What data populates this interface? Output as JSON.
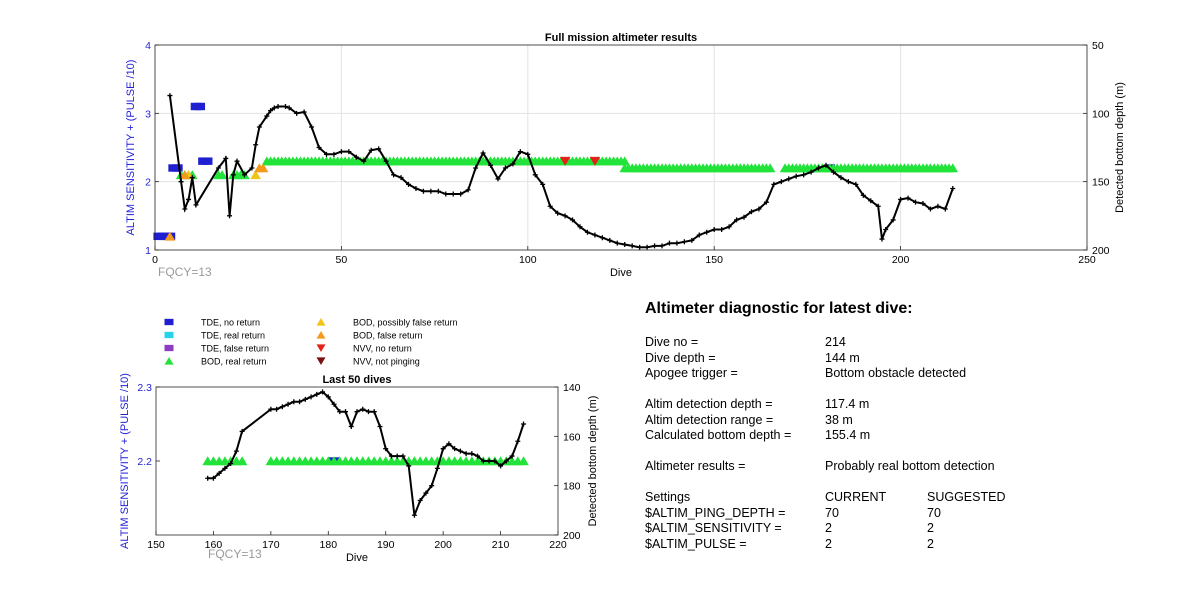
{
  "top_chart": {
    "title": "Full mission altimeter results",
    "xlabel": "Dive",
    "ylabel": "ALTIM SENSITIVITY + (PULSE /10)",
    "y2label": "Detected bottom depth (m)",
    "fqcy_label": "FQCY=13",
    "xticks": [
      "0",
      "50",
      "100",
      "150",
      "200",
      "250"
    ],
    "yticks": [
      "1",
      "2",
      "3",
      "4"
    ],
    "y2ticks": [
      "50",
      "100",
      "150",
      "200"
    ]
  },
  "bottom_chart": {
    "title": "Last 50 dives",
    "xlabel": "Dive",
    "ylabel": "ALTIM SENSITIVITY + (PULSE /10)",
    "y2label": "Detected bottom depth (m)",
    "fqcy_label": "FQCY=13",
    "xticks": [
      "150",
      "160",
      "170",
      "180",
      "190",
      "200",
      "210",
      "220"
    ],
    "yticks": [
      "2.2",
      "2.3"
    ],
    "y2ticks": [
      "140",
      "160",
      "180",
      "200"
    ]
  },
  "legend": {
    "items": [
      {
        "label": "TDE, no return",
        "color": "#1f1fd1",
        "marker": "square"
      },
      {
        "label": "TDE, real return",
        "color": "#27d3e8",
        "marker": "square"
      },
      {
        "label": "TDE, false return",
        "color": "#8e3bc4",
        "marker": "square"
      },
      {
        "label": "BOD, real return",
        "color": "#22e33a",
        "marker": "triangle-up"
      },
      {
        "label": "BOD, possibly false return",
        "color": "#f2c318",
        "marker": "triangle-up"
      },
      {
        "label": "BOD, false return",
        "color": "#f39a1c",
        "marker": "triangle-up"
      },
      {
        "label": "NVV, no return",
        "color": "#e2231a",
        "marker": "triangle-down"
      },
      {
        "label": "NVV, not pinging",
        "color": "#7a1010",
        "marker": "triangle-down"
      }
    ]
  },
  "diagnostic": {
    "title": "Altimeter diagnostic for latest dive:",
    "dive_no_label": "Dive no =",
    "dive_no": "214",
    "dive_depth_label": "Dive depth =",
    "dive_depth": "144 m",
    "apogee_label": "Apogee trigger =",
    "apogee": "Bottom obstacle detected",
    "altim_depth_label": "Altim detection depth =",
    "altim_depth": "117.4 m",
    "altim_range_label": "Altim detection range =",
    "altim_range": "38 m",
    "calc_depth_label": "Calculated bottom depth =",
    "calc_depth": "155.4 m",
    "results_label": "Altimeter results =",
    "results": "Probably real bottom detection",
    "settings_label": "Settings",
    "current_label": "CURRENT",
    "suggested_label": "SUGGESTED",
    "ping_depth_label": "$ALTIM_PING_DEPTH =",
    "ping_depth_current": "70",
    "ping_depth_suggested": "70",
    "sensitivity_label": "$ALTIM_SENSITIVITY =",
    "sensitivity_current": "2",
    "sensitivity_suggested": "2",
    "pulse_label": "$ALTIM_PULSE =",
    "pulse_current": "2",
    "pulse_suggested": "2"
  },
  "chart_data": [
    {
      "type": "scatter",
      "title": "Full mission altimeter results",
      "xlabel": "Dive",
      "ylabel": "ALTIM SENSITIVITY + (PULSE /10)",
      "y2label": "Detected bottom depth (m)",
      "xlim": [
        0,
        250
      ],
      "ylim": [
        1,
        4
      ],
      "y2lim": [
        50,
        200
      ],
      "y2_reversed": true,
      "grid": true,
      "series": [
        {
          "name": "TDE, no return",
          "marker": "square",
          "color": "#1f1fd1",
          "points": [
            [
              1,
              1.2
            ],
            [
              2,
              1.2
            ],
            [
              3,
              1.2
            ],
            [
              4,
              1.2
            ],
            [
              5,
              2.2
            ],
            [
              6,
              2.2
            ],
            [
              11,
              3.1
            ],
            [
              12,
              3.1
            ],
            [
              13,
              2.3
            ],
            [
              14,
              2.3
            ],
            [
              181,
              2.2
            ]
          ]
        },
        {
          "name": "BOD, real return",
          "marker": "triangle-up",
          "color": "#22e33a",
          "ranges": [
            {
              "x": [
                7,
                8,
                9,
                10,
                17,
                18,
                21,
                22,
                23,
                24
              ],
              "y": 2.1
            },
            {
              "x_from": 30,
              "x_to": 126,
              "y": 2.3
            },
            {
              "x_from": 126,
              "x_to": 165,
              "y": 2.2
            },
            {
              "x_from": 169,
              "x_to": 214,
              "y": 2.2
            }
          ]
        },
        {
          "name": "BOD, possibly false return",
          "marker": "triangle-up",
          "color": "#f2c318",
          "points": [
            [
              9,
              2.1
            ],
            [
              27,
              2.1
            ]
          ]
        },
        {
          "name": "BOD, false return",
          "marker": "triangle-up",
          "color": "#f39a1c",
          "points": [
            [
              4,
              1.2
            ],
            [
              8,
              2.1
            ],
            [
              28,
              2.2
            ],
            [
              29,
              2.2
            ]
          ]
        },
        {
          "name": "NVV, no return",
          "marker": "triangle-down",
          "color": "#e2231a",
          "points": [
            [
              110,
              2.3
            ],
            [
              118,
              2.3
            ]
          ]
        },
        {
          "name": "Detected bottom depth",
          "axis": "right",
          "marker": "plus",
          "color": "#000000",
          "x": [
            4,
            7,
            8,
            9,
            10,
            11,
            17,
            19,
            20,
            21,
            22,
            24,
            26,
            27,
            28,
            30,
            31,
            32,
            33,
            35,
            36,
            38,
            40,
            42,
            44,
            46,
            48,
            50,
            52,
            54,
            56,
            58,
            60,
            62,
            64,
            66,
            68,
            70,
            72,
            74,
            76,
            78,
            80,
            82,
            84,
            86,
            88,
            90,
            92,
            94,
            96,
            98,
            100,
            102,
            104,
            106,
            108,
            110,
            112,
            114,
            116,
            118,
            120,
            122,
            124,
            126,
            128,
            130,
            132,
            134,
            136,
            138,
            140,
            142,
            144,
            146,
            148,
            150,
            152,
            154,
            156,
            158,
            160,
            162,
            164,
            166,
            168,
            170,
            172,
            174,
            176,
            178,
            180,
            182,
            184,
            186,
            188,
            190,
            192,
            194,
            195,
            196,
            198,
            200,
            202,
            204,
            206,
            208,
            210,
            212,
            214
          ],
          "y": [
            87,
            150,
            170,
            163,
            147,
            167,
            140,
            133,
            175,
            145,
            135,
            145,
            140,
            123,
            110,
            102,
            98,
            96,
            95,
            95,
            96,
            100,
            99,
            110,
            125,
            130,
            130,
            128,
            128,
            132,
            135,
            127,
            126,
            135,
            145,
            147,
            152,
            155,
            157,
            157,
            157,
            159,
            159,
            159,
            156,
            140,
            129,
            138,
            148,
            140,
            137,
            128,
            130,
            145,
            152,
            168,
            173,
            175,
            178,
            183,
            187,
            189,
            191,
            193,
            195,
            196,
            197,
            198,
            198,
            197,
            197,
            195,
            195,
            194,
            193,
            189,
            187,
            185,
            185,
            183,
            178,
            176,
            172,
            170,
            165,
            152,
            150,
            148,
            146,
            145,
            143,
            140,
            138,
            143,
            147,
            150,
            152,
            160,
            164,
            168,
            192,
            185,
            178,
            163,
            162,
            165,
            166,
            170,
            168,
            170,
            155
          ]
        }
      ]
    },
    {
      "type": "scatter",
      "title": "Last 50 dives",
      "xlabel": "Dive",
      "ylabel": "ALTIM SENSITIVITY + (PULSE /10)",
      "y2label": "Detected bottom depth (m)",
      "xlim": [
        150,
        220
      ],
      "ylim": [
        2.1,
        2.3
      ],
      "y2lim": [
        140,
        200
      ],
      "y2_reversed": true,
      "grid": false,
      "series": [
        {
          "name": "TDE, no return",
          "marker": "square",
          "color": "#1f1fd1",
          "points": [
            [
              181,
              2.2
            ]
          ]
        },
        {
          "name": "BOD, real return",
          "marker": "triangle-up",
          "color": "#22e33a",
          "ranges": [
            {
              "x_from": 159,
              "x_to": 165,
              "y": 2.2
            },
            {
              "x_from": 170,
              "x_to": 214,
              "y": 2.2
            }
          ]
        },
        {
          "name": "Detected bottom depth",
          "axis": "right",
          "marker": "plus",
          "color": "#000000",
          "x": [
            159,
            160,
            161,
            162,
            163,
            164,
            165,
            170,
            171,
            172,
            173,
            174,
            175,
            176,
            177,
            178,
            179,
            180,
            181,
            182,
            183,
            184,
            185,
            186,
            187,
            188,
            189,
            190,
            191,
            192,
            193,
            194,
            195,
            196,
            197,
            198,
            199,
            200,
            201,
            202,
            203,
            204,
            205,
            206,
            207,
            208,
            209,
            210,
            211,
            212,
            213,
            214
          ],
          "y": [
            177,
            177,
            175,
            173,
            171,
            166,
            158,
            149,
            149,
            148,
            147,
            146,
            146,
            145,
            144,
            143,
            142,
            144,
            147,
            150,
            150,
            156,
            150,
            149,
            150,
            150,
            156,
            165,
            168,
            168,
            168,
            172,
            192,
            186,
            183,
            180,
            173,
            165,
            163,
            165,
            166,
            167,
            167,
            168,
            170,
            170,
            170,
            172,
            170,
            168,
            162,
            155
          ]
        }
      ]
    }
  ]
}
